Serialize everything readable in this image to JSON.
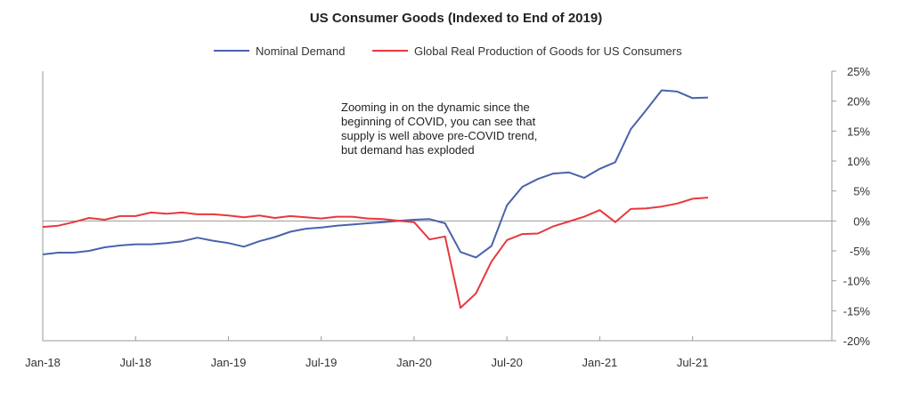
{
  "chart_data": {
    "type": "line",
    "title": "US Consumer Goods (Indexed to End of 2019)",
    "x_tick_labels": [
      "Jan-18",
      "Jul-18",
      "Jan-19",
      "Jul-19",
      "Jan-20",
      "Jul-20",
      "Jan-21",
      "Jul-21"
    ],
    "y_tick_labels": [
      "25%",
      "20%",
      "15%",
      "10%",
      "5%",
      "0%",
      "-5%",
      "-10%",
      "-15%",
      "-20%"
    ],
    "ylim": [
      -20,
      25
    ],
    "y_axis_position": "right",
    "grid": false,
    "legend_position": "top-center",
    "x": [
      "2018-01",
      "2018-02",
      "2018-03",
      "2018-04",
      "2018-05",
      "2018-06",
      "2018-07",
      "2018-08",
      "2018-09",
      "2018-10",
      "2018-11",
      "2018-12",
      "2019-01",
      "2019-02",
      "2019-03",
      "2019-04",
      "2019-05",
      "2019-06",
      "2019-07",
      "2019-08",
      "2019-09",
      "2019-10",
      "2019-11",
      "2019-12",
      "2020-01",
      "2020-02",
      "2020-03",
      "2020-04",
      "2020-05",
      "2020-06",
      "2020-07",
      "2020-08",
      "2020-09",
      "2020-10",
      "2020-11",
      "2020-12",
      "2021-01",
      "2021-02",
      "2021-03",
      "2021-04",
      "2021-05",
      "2021-06",
      "2021-07",
      "2021-08"
    ],
    "series": [
      {
        "name": "Nominal Demand",
        "color": "#4a62ad",
        "values": [
          -5.6,
          -5.3,
          -5.3,
          -5.0,
          -4.4,
          -4.1,
          -3.9,
          -3.9,
          -3.7,
          -3.4,
          -2.8,
          -3.3,
          -3.7,
          -4.3,
          -3.4,
          -2.7,
          -1.8,
          -1.3,
          -1.1,
          -0.8,
          -0.6,
          -0.4,
          -0.2,
          0.0,
          0.2,
          0.3,
          -0.4,
          -5.2,
          -6.1,
          -4.2,
          2.6,
          5.7,
          7.0,
          7.9,
          8.1,
          7.2,
          8.7,
          9.8,
          15.3,
          18.5,
          21.8,
          21.6,
          20.5,
          20.6
        ]
      },
      {
        "name": "Global Real Production of Goods for US Consumers",
        "color": "#e8373c",
        "values": [
          -1.0,
          -0.8,
          -0.2,
          0.5,
          0.2,
          0.8,
          0.8,
          1.4,
          1.2,
          1.4,
          1.1,
          1.1,
          0.9,
          0.6,
          0.9,
          0.5,
          0.8,
          0.6,
          0.4,
          0.7,
          0.7,
          0.4,
          0.3,
          0.0,
          -0.2,
          -3.1,
          -2.6,
          -14.5,
          -12.1,
          -6.8,
          -3.2,
          -2.2,
          -2.1,
          -0.9,
          -0.1,
          0.7,
          1.8,
          -0.2,
          2.0,
          2.1,
          2.4,
          2.9,
          3.7,
          3.9
        ]
      }
    ],
    "annotation": [
      "Zooming in on the dynamic since the",
      "beginning of COVID, you can see that",
      "supply is well above pre-COVID trend,",
      "but demand has exploded"
    ]
  }
}
